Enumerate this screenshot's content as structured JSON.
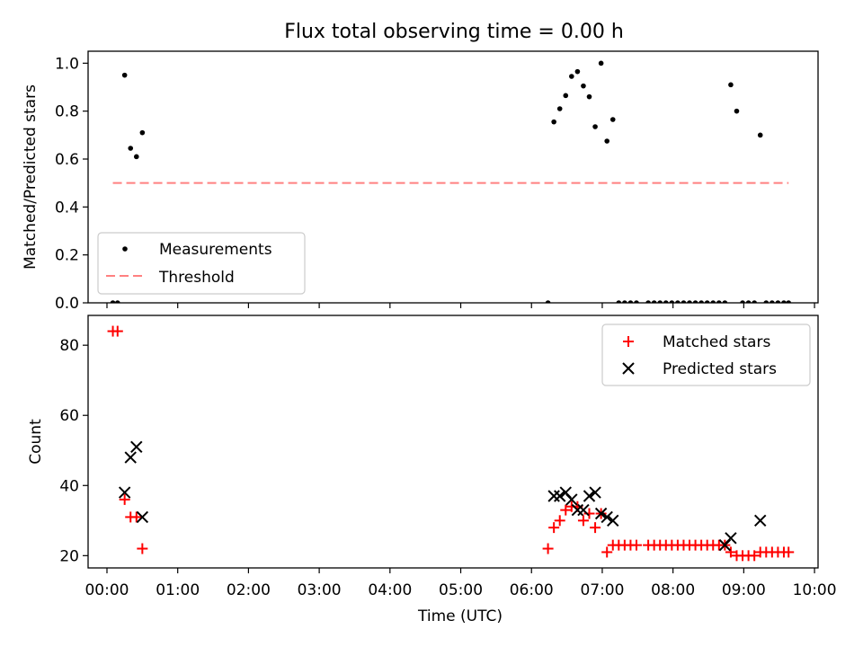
{
  "figure": {
    "title": "Flux total observing time = 0.00 h"
  },
  "colors": {
    "measurement": "#000000",
    "threshold": "#ff8080",
    "matched": "#ff0000",
    "predicted": "#000000",
    "axes": "#000000"
  },
  "chart_data": [
    {
      "type": "scatter",
      "ylabel": "Matched/Predicted stars",
      "xlabel": "",
      "xlim": [
        "23:44",
        "10:03"
      ],
      "ylim": [
        0,
        1.05
      ],
      "yticks": [
        "0.0",
        "0.2",
        "0.4",
        "0.6",
        "0.8",
        "1.0"
      ],
      "grid": false,
      "legend": {
        "position": "lower-left",
        "entries": [
          "Measurements",
          "Threshold"
        ]
      },
      "series": [
        {
          "name": "Measurements",
          "marker": "dot",
          "points": [
            [
              "00:05",
              0.0
            ],
            [
              "00:09",
              0.0
            ],
            [
              "00:15",
              0.95
            ],
            [
              "00:20",
              0.645
            ],
            [
              "00:25",
              0.61
            ],
            [
              "00:30",
              0.71
            ],
            [
              "06:14",
              0.0
            ],
            [
              "06:19",
              0.755
            ],
            [
              "06:24",
              0.81
            ],
            [
              "06:29",
              0.865
            ],
            [
              "06:34",
              0.945
            ],
            [
              "06:39",
              0.965
            ],
            [
              "06:44",
              0.905
            ],
            [
              "06:49",
              0.86
            ],
            [
              "06:54",
              0.735
            ],
            [
              "06:59",
              1.0
            ],
            [
              "07:04",
              0.675
            ],
            [
              "07:09",
              0.765
            ],
            [
              "07:14",
              0.0
            ],
            [
              "07:19",
              0.0
            ],
            [
              "07:24",
              0.0
            ],
            [
              "07:29",
              0.0
            ],
            [
              "07:39",
              0.0
            ],
            [
              "07:44",
              0.0
            ],
            [
              "07:49",
              0.0
            ],
            [
              "07:54",
              0.0
            ],
            [
              "07:59",
              0.0
            ],
            [
              "08:04",
              0.0
            ],
            [
              "08:09",
              0.0
            ],
            [
              "08:14",
              0.0
            ],
            [
              "08:19",
              0.0
            ],
            [
              "08:24",
              0.0
            ],
            [
              "08:29",
              0.0
            ],
            [
              "08:34",
              0.0
            ],
            [
              "08:39",
              0.0
            ],
            [
              "08:44",
              0.0
            ],
            [
              "08:49",
              0.91
            ],
            [
              "08:54",
              0.8
            ],
            [
              "08:59",
              0.0
            ],
            [
              "09:04",
              0.0
            ],
            [
              "09:09",
              0.0
            ],
            [
              "09:14",
              0.7
            ],
            [
              "09:19",
              0.0
            ],
            [
              "09:24",
              0.0
            ],
            [
              "09:29",
              0.0
            ],
            [
              "09:34",
              0.0
            ],
            [
              "09:38",
              0.0
            ]
          ]
        },
        {
          "name": "Threshold",
          "line": "dashed",
          "points": [
            [
              "00:05",
              0.5
            ],
            [
              "09:38",
              0.5
            ]
          ]
        }
      ]
    },
    {
      "type": "scatter",
      "ylabel": "Count",
      "xlabel": "Time (UTC)",
      "xlim": [
        "23:44",
        "10:03"
      ],
      "ylim": [
        16.5,
        88.5
      ],
      "yticks": [
        "20",
        "40",
        "60",
        "80"
      ],
      "xticks": [
        "00:00",
        "01:00",
        "02:00",
        "03:00",
        "04:00",
        "05:00",
        "06:00",
        "07:00",
        "08:00",
        "09:00",
        "10:00"
      ],
      "grid": false,
      "legend": {
        "position": "upper-right",
        "entries": [
          "Matched stars",
          "Predicted stars"
        ]
      },
      "series": [
        {
          "name": "Matched stars",
          "marker": "plus",
          "points": [
            [
              "00:05",
              84
            ],
            [
              "00:09",
              84
            ],
            [
              "00:15",
              36
            ],
            [
              "00:20",
              31
            ],
            [
              "00:25",
              31
            ],
            [
              "00:30",
              22
            ],
            [
              "06:14",
              22
            ],
            [
              "06:19",
              28
            ],
            [
              "06:24",
              30
            ],
            [
              "06:29",
              33
            ],
            [
              "06:34",
              34
            ],
            [
              "06:39",
              34
            ],
            [
              "06:44",
              30
            ],
            [
              "06:49",
              32
            ],
            [
              "06:54",
              28
            ],
            [
              "06:59",
              32
            ],
            [
              "07:04",
              21
            ],
            [
              "07:09",
              23
            ],
            [
              "07:14",
              23
            ],
            [
              "07:19",
              23
            ],
            [
              "07:24",
              23
            ],
            [
              "07:29",
              23
            ],
            [
              "07:39",
              23
            ],
            [
              "07:44",
              23
            ],
            [
              "07:49",
              23
            ],
            [
              "07:54",
              23
            ],
            [
              "07:59",
              23
            ],
            [
              "08:04",
              23
            ],
            [
              "08:09",
              23
            ],
            [
              "08:14",
              23
            ],
            [
              "08:19",
              23
            ],
            [
              "08:24",
              23
            ],
            [
              "08:29",
              23
            ],
            [
              "08:34",
              23
            ],
            [
              "08:39",
              23
            ],
            [
              "08:44",
              23
            ],
            [
              "08:49",
              21
            ],
            [
              "08:54",
              20
            ],
            [
              "08:59",
              20
            ],
            [
              "09:04",
              20
            ],
            [
              "09:09",
              20
            ],
            [
              "09:14",
              21
            ],
            [
              "09:19",
              21
            ],
            [
              "09:24",
              21
            ],
            [
              "09:29",
              21
            ],
            [
              "09:34",
              21
            ],
            [
              "09:38",
              21
            ]
          ]
        },
        {
          "name": "Predicted stars",
          "marker": "x",
          "points": [
            [
              "00:15",
              38
            ],
            [
              "00:20",
              48
            ],
            [
              "00:25",
              51
            ],
            [
              "00:30",
              31
            ],
            [
              "06:19",
              37
            ],
            [
              "06:24",
              37
            ],
            [
              "06:29",
              38
            ],
            [
              "06:34",
              36
            ],
            [
              "06:39",
              33
            ],
            [
              "06:44",
              33
            ],
            [
              "06:49",
              37
            ],
            [
              "06:54",
              38
            ],
            [
              "06:59",
              32
            ],
            [
              "07:04",
              31
            ],
            [
              "07:09",
              30
            ],
            [
              "08:44",
              23
            ],
            [
              "08:49",
              25
            ],
            [
              "09:14",
              30
            ]
          ]
        }
      ]
    }
  ]
}
